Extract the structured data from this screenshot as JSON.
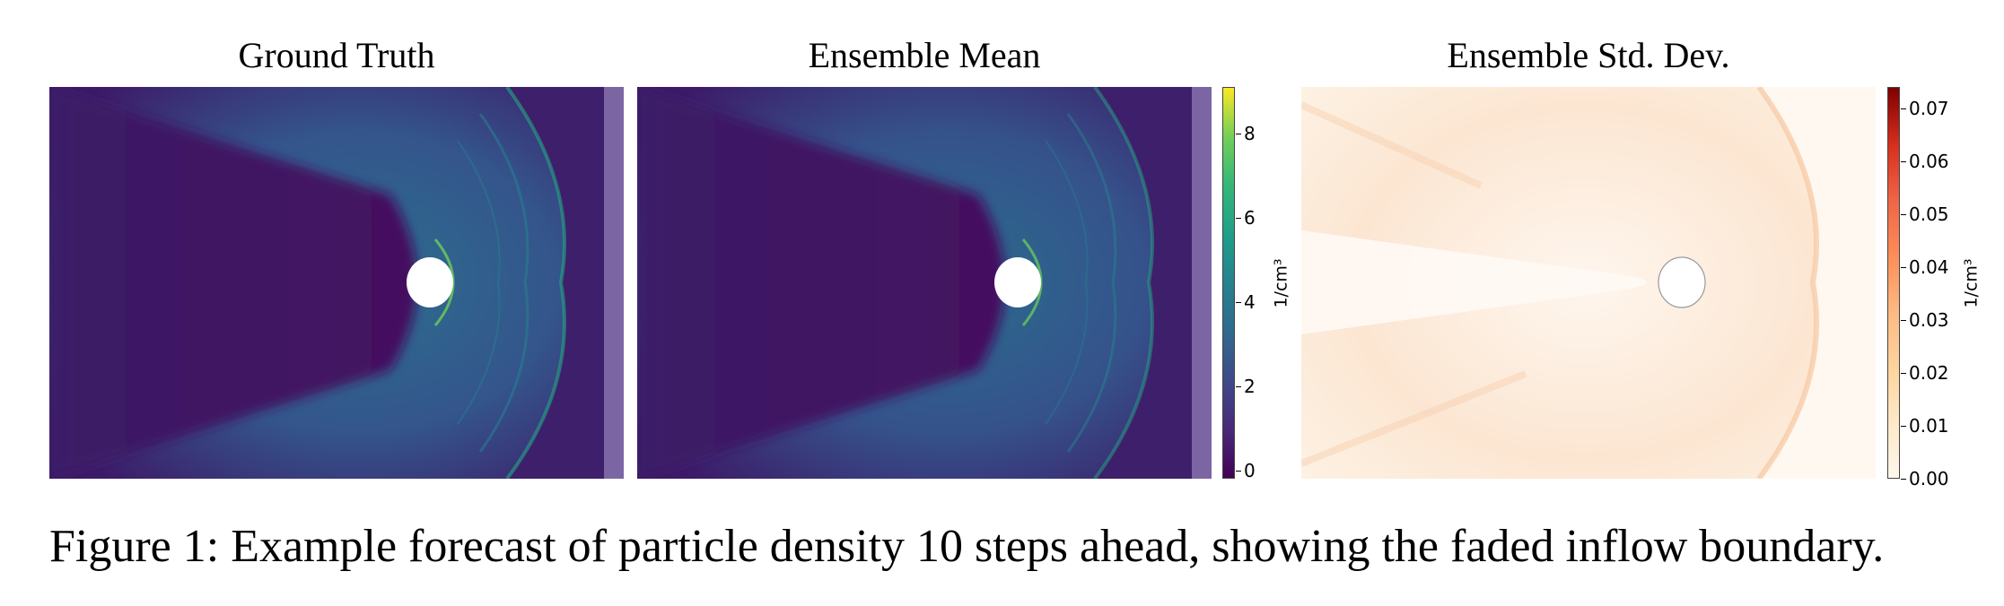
{
  "figure": {
    "panels": [
      {
        "title": "Ground Truth"
      },
      {
        "title": "Ensemble Mean"
      },
      {
        "title": "Ensemble Std. Dev."
      }
    ],
    "colorbar_mean": {
      "label": "1/cm³",
      "ticks": [
        "0",
        "2",
        "4",
        "6",
        "8"
      ],
      "range": [
        -0.2,
        9.1
      ],
      "colormap": "viridis"
    },
    "colorbar_std": {
      "label": "1/cm³",
      "ticks": [
        "0.00",
        "0.01",
        "0.02",
        "0.03",
        "0.04",
        "0.05",
        "0.06",
        "0.07"
      ],
      "range": [
        0,
        0.074
      ],
      "colormap": "OrRd"
    },
    "caption": "Figure 1: Example forecast of particle density 10 steps ahead, showing the faded inflow boundary."
  },
  "colors": {
    "background_dark": "#3d1a68",
    "sheath": "#2c6e8e",
    "shock_front": "#21918c",
    "inflow_boundary": "#7b66a3",
    "std_background": "#fdf2e4",
    "std_edge": "#f6c7a1"
  }
}
